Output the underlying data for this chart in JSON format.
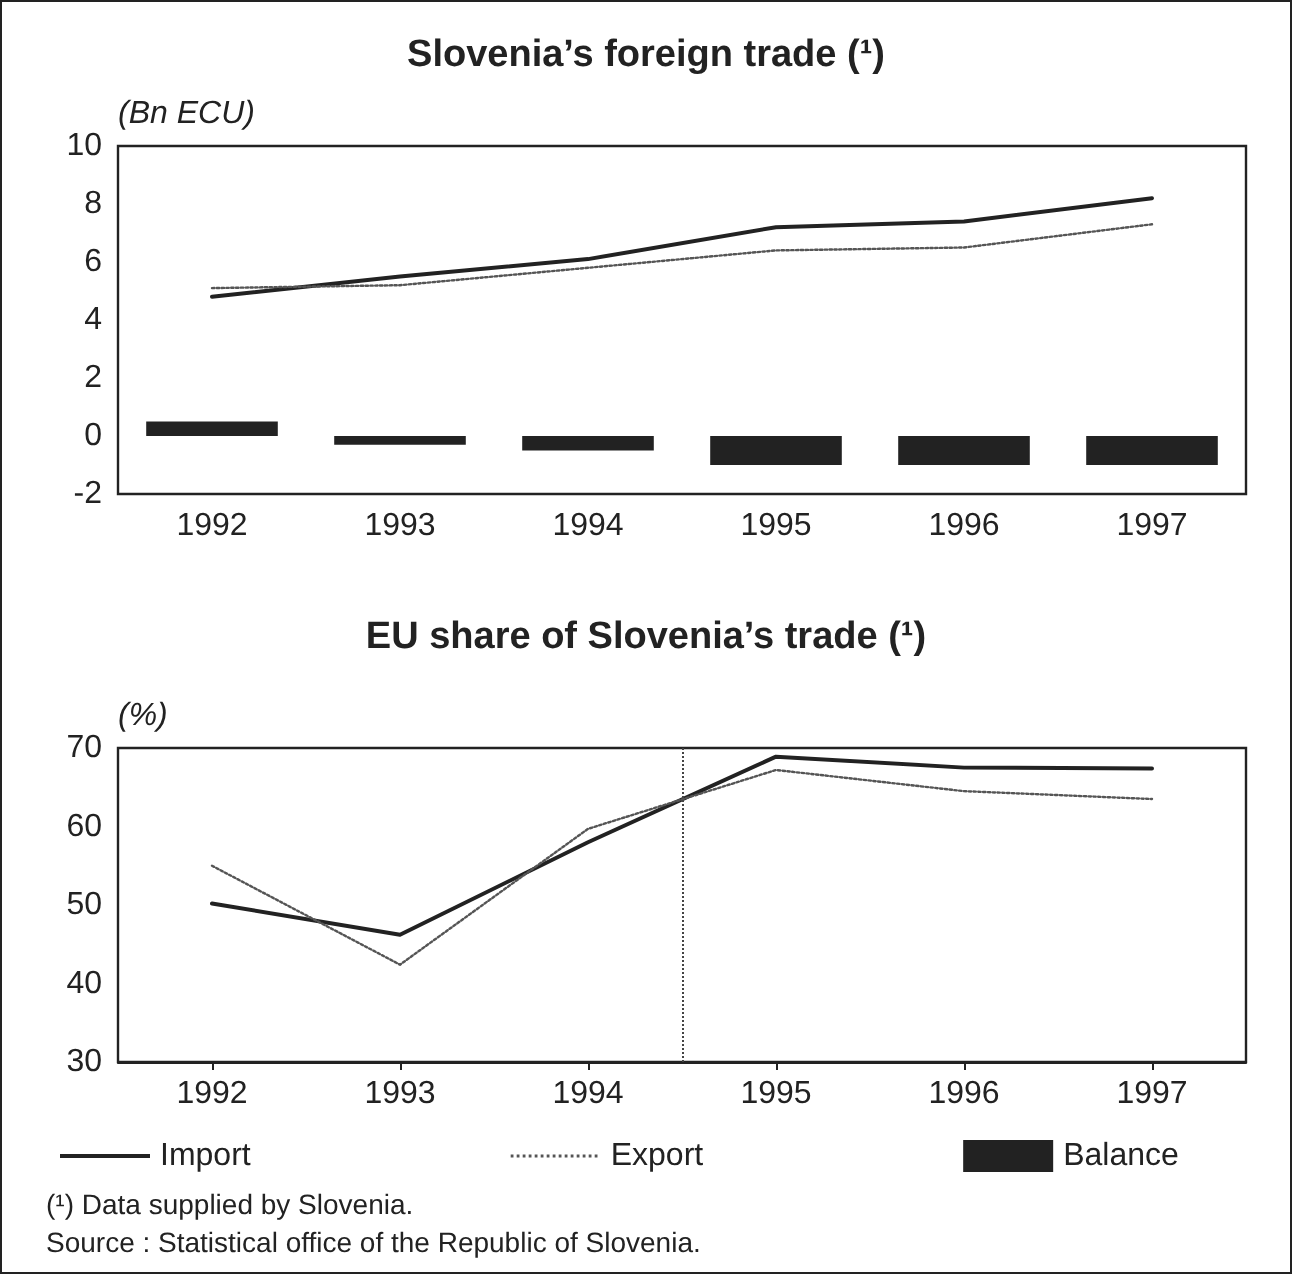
{
  "chart_data": [
    {
      "type": "line",
      "title": "Slovenia’s foreign trade (¹)",
      "ylabel": "(Bn ECU)",
      "categories": [
        "1992",
        "1993",
        "1994",
        "1995",
        "1996",
        "1997"
      ],
      "ylim": [
        -2,
        10
      ],
      "yticks": [
        -2,
        0,
        2,
        4,
        6,
        8,
        10
      ],
      "grid": false,
      "marker": "none",
      "legend": "bottom",
      "series": [
        {
          "name": "Import",
          "color": "#222222",
          "line_style": "solid",
          "values": [
            4.8,
            5.5,
            6.1,
            7.2,
            7.4,
            8.2
          ]
        },
        {
          "name": "Export",
          "color": "#555555",
          "line_style": "dotted",
          "values": [
            5.1,
            5.2,
            5.8,
            6.4,
            6.5,
            7.3
          ]
        },
        {
          "name": "Balance",
          "type": "bar",
          "color": "#222222",
          "values": [
            0.5,
            -0.3,
            -0.5,
            -1.0,
            -1.0,
            -1.0
          ]
        }
      ]
    },
    {
      "type": "line",
      "title": "EU share of Slovenia’s trade (¹)",
      "ylabel": "(%)",
      "x": [
        1992,
        1993,
        1994,
        1995,
        1996,
        1997
      ],
      "xlim": [
        1991.5,
        1997.5
      ],
      "xticks": [
        1992,
        1993,
        1994,
        1995,
        1996,
        1997
      ],
      "ylim": [
        30,
        70
      ],
      "yticks": [
        30,
        40,
        50,
        60,
        70
      ],
      "grid": false,
      "marker": "none",
      "legend": false,
      "ref_lines": [
        {
          "axis": "x",
          "value": 1994.5,
          "label": null,
          "line_style": "dotted"
        }
      ],
      "series": [
        {
          "color": "#222222",
          "line_style": "solid",
          "values": [
            50.2,
            46.2,
            58.0,
            68.9,
            67.5,
            67.4
          ]
        },
        {
          "color": "#555555",
          "line_style": "dotted",
          "values": [
            55.0,
            42.4,
            59.7,
            67.2,
            64.5,
            63.5
          ]
        }
      ],
      "annotations": [
        "(¹) Data supplied by Slovenia.",
        "Source : Statistical office of the Republic of Slovenia."
      ]
    }
  ]
}
